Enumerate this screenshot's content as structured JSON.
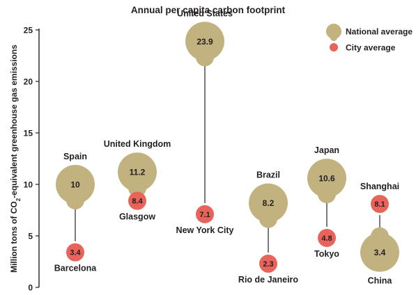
{
  "chart_data": {
    "type": "scatter",
    "title": "Annual per capita carbon footprint",
    "ylabel": "Million tons of CO2-equivalent greenhouse gas emissions",
    "ylim": [
      0,
      25
    ],
    "yticks": [
      0,
      5,
      10,
      15,
      20,
      25
    ],
    "legend": {
      "placement": "top-right",
      "entries": [
        {
          "name": "National average",
          "color": "#c2b280"
        },
        {
          "name": "City average",
          "color": "#e8645a"
        }
      ]
    },
    "series": [
      {
        "name": "National average",
        "color": "#c2b280",
        "points": [
          {
            "country": "Spain",
            "value": 10,
            "label": "10"
          },
          {
            "country": "United Kingdom",
            "value": 11.2,
            "label": "11.2"
          },
          {
            "country": "United States",
            "value": 23.9,
            "label": "23.9"
          },
          {
            "country": "Brazil",
            "value": 8.2,
            "label": "8.2"
          },
          {
            "country": "Japan",
            "value": 10.6,
            "label": "10.6"
          },
          {
            "country": "China",
            "value": 3.4,
            "label": "3.4"
          }
        ]
      },
      {
        "name": "City average",
        "color": "#e8645a",
        "points": [
          {
            "city": "Barcelona",
            "value": 3.4,
            "label": "3.4"
          },
          {
            "city": "Glasgow",
            "value": 8.4,
            "label": "8.4"
          },
          {
            "city": "New York City",
            "value": 7.1,
            "label": "7.1"
          },
          {
            "city": "Rio de Janeiro",
            "value": 2.3,
            "label": "2.3"
          },
          {
            "city": "Tokyo",
            "value": 4.8,
            "label": "4.8"
          },
          {
            "city": "Shanghai",
            "value": 8.1,
            "label": "8.1"
          }
        ]
      }
    ]
  }
}
